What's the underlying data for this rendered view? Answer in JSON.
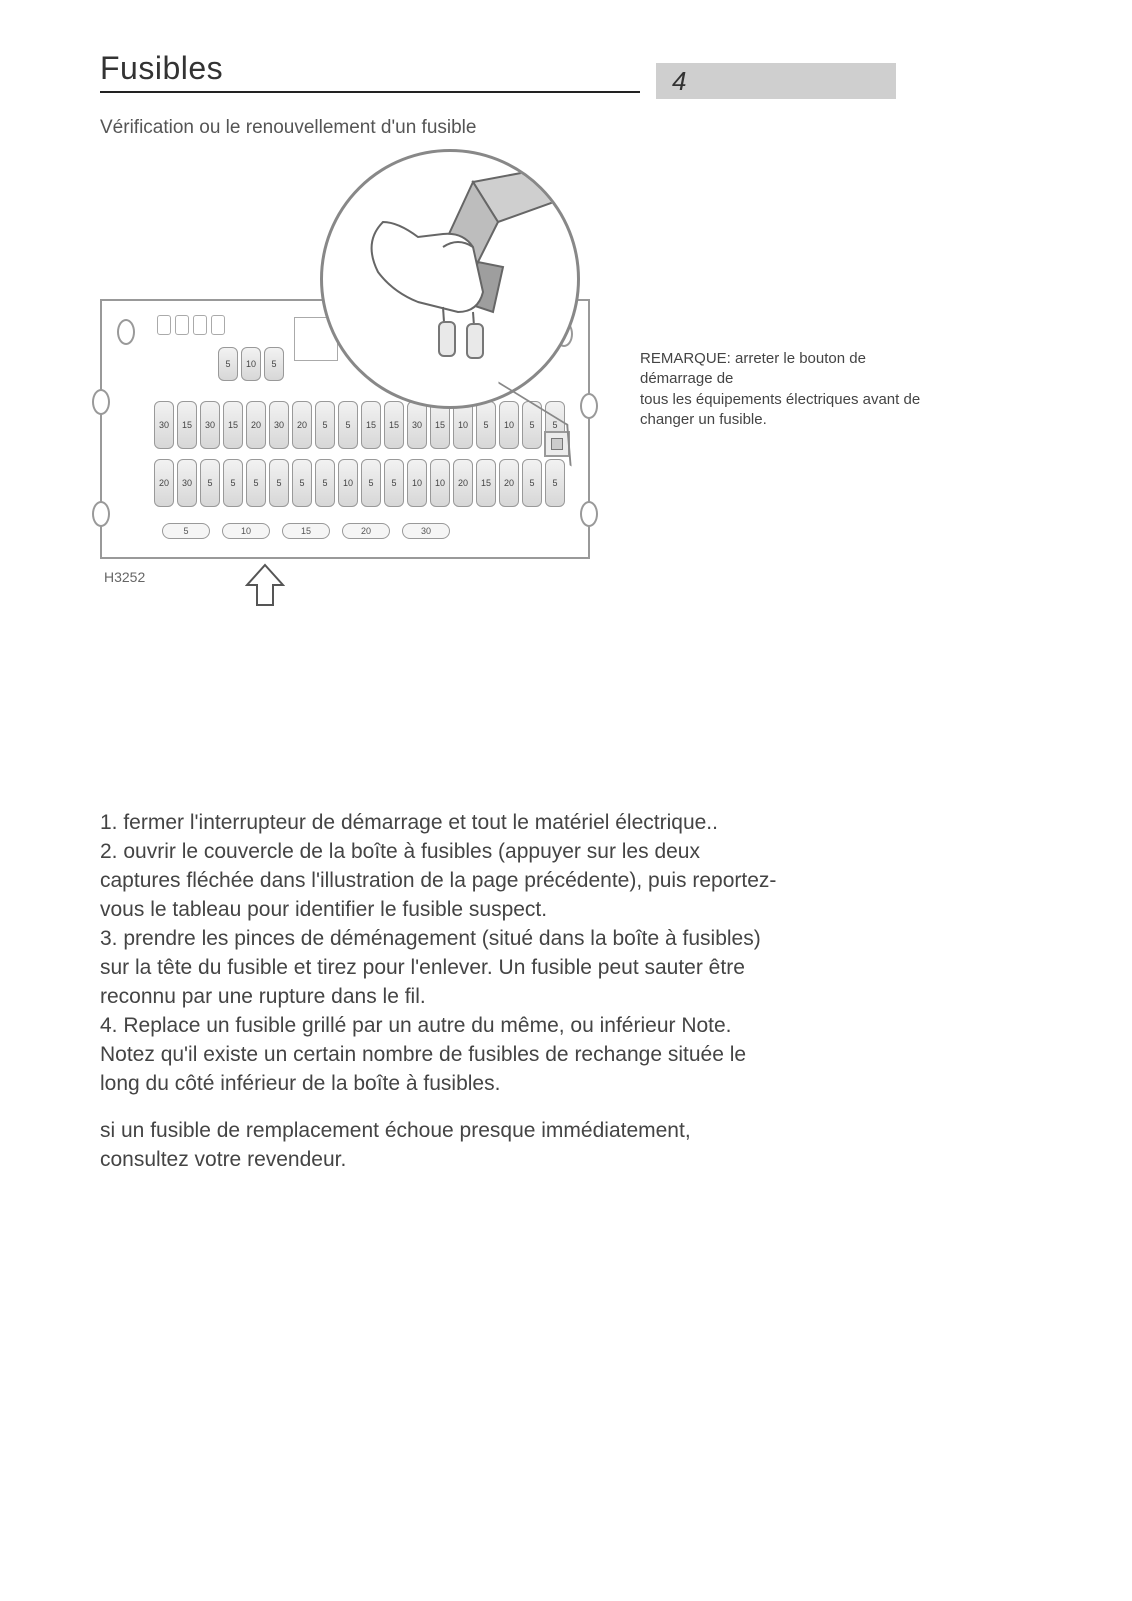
{
  "page": {
    "title": "Fusibles",
    "number": "4",
    "subtitle": "Vérification ou le renouvellement d'un fusible",
    "figure_label": "H3252"
  },
  "sidebar_note": {
    "line1": "REMARQUE: arreter le bouton de démarrage de",
    "line2": "tous les équipements électriques avant de changer un fusible."
  },
  "fuse_rows": {
    "top_small": [
      "5",
      "10",
      "5"
    ],
    "row1": [
      "30",
      "15",
      "30",
      "15",
      "20",
      "30",
      "20",
      "5",
      "5",
      "15",
      "15",
      "30",
      "15",
      "10",
      "5",
      "10",
      "5",
      "5"
    ],
    "row2": [
      "20",
      "30",
      "5",
      "5",
      "5",
      "5",
      "5",
      "5",
      "10",
      "5",
      "5",
      "10",
      "10",
      "20",
      "15",
      "20",
      "5",
      "5"
    ],
    "spares": [
      "5",
      "10",
      "15",
      "20",
      "30"
    ]
  },
  "instructions": {
    "p1": "1. fermer l'interrupteur de démarrage et tout le matériel électrique..\n2. ouvrir le couvercle de la boîte à fusibles (appuyer sur les deux captures   fléchée dans l'illustration de la page précédente), puis reportez-vous   le tableau pour identifier le fusible suspect.\n3. prendre les pinces de déménagement (situé dans la boîte à fusibles) sur   la tête du fusible et tirez pour l'enlever. Un fusible peut sauter  être reconnu par une rupture dans le fil.\n4. Replace un fusible grillé par un autre du même, ou inférieur Note. Notez qu'il existe un certain nombre de fusibles de rechange située   le long du côté inférieur de la boîte à fusibles.",
    "p2": "si un fusible de remplacement échoue presque immédiatement, consultez votre revendeur."
  },
  "colors": {
    "rule": "#222222",
    "box_border": "#999999",
    "gray_bg": "#cfcfcf",
    "text": "#333333"
  }
}
